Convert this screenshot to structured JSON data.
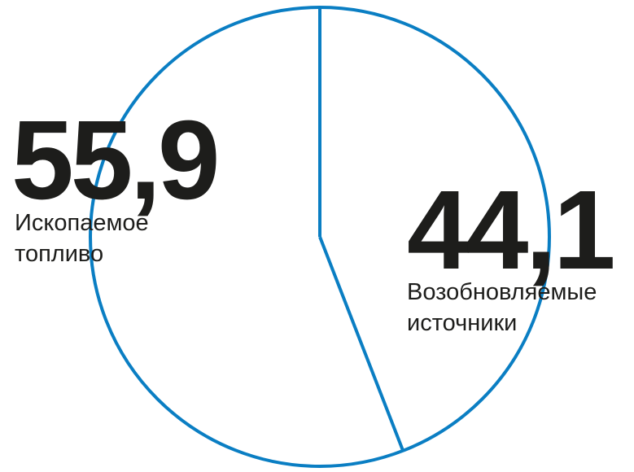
{
  "chart_data": {
    "type": "pie",
    "start_angle": "top",
    "direction": "clockwise",
    "slices": [
      {
        "label_value": "44,1",
        "value": 44.1,
        "label": [
          "Возобновляемые",
          "источники"
        ]
      },
      {
        "label_value": "55,9",
        "value": 55.9,
        "label": [
          "Ископаемое",
          "топливо"
        ]
      }
    ],
    "fill": "none",
    "stroke_color": "#0a7ec3",
    "text_color": "#1d1d1b"
  }
}
